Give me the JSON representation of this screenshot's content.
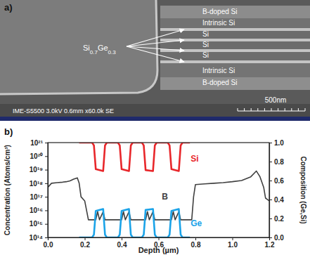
{
  "sem_image": {
    "panel_label": "a)",
    "layer_labels": [
      "B-doped Si",
      "Intrinsic Si",
      "Si",
      "Si",
      "Si",
      "Intrinsic Si",
      "B-doped Si"
    ],
    "sige_label": "Si0.7Ge0.3",
    "info_bar": "IME-S5500 3.0kV 0.6mm x60.0k SE",
    "scale_bar": "500nm"
  },
  "chart_data": {
    "type": "line",
    "panel_label": "b)",
    "x_label": "Depth (µm)",
    "y_label": "Concentration (Atoms/cm³)",
    "y2_label": "Composition (Ge,Si)",
    "log": "y",
    "grid": false,
    "xlim": [
      0,
      1.2
    ],
    "xticks": [
      {
        "value": 0,
        "label": "0.0"
      },
      0.2,
      0.4,
      0.6,
      0.8,
      {
        "value": 1,
        "label": "1.0"
      },
      1.2
    ],
    "ylim": [
      100000000000000.0,
      1e+21
    ],
    "yticks": [
      {
        "value": 100000000000000.0,
        "label": "10¹⁴"
      },
      {
        "value": 1000000000000000.0,
        "label": "10¹⁵"
      },
      {
        "value": 1e+16,
        "label": "10¹⁶"
      },
      {
        "value": 1e+17,
        "label": "10¹⁷"
      },
      {
        "value": 1e+18,
        "label": "10¹⁸"
      },
      {
        "value": 1e+19,
        "label": "10¹⁹"
      },
      {
        "value": 1e+20,
        "label": "10²⁰"
      },
      {
        "value": 1e+21,
        "label": "10²¹"
      }
    ],
    "y2lim": [
      0,
      1
    ],
    "y2ticks": [
      {
        "value": 0,
        "label": "0.0"
      },
      0.2,
      0.4,
      0.6,
      0.8,
      {
        "value": 1,
        "label": "1.0"
      }
    ],
    "series": [
      {
        "name": "Si",
        "color": "#e8262a",
        "axis": "y2",
        "x": [
          0.17,
          0.24,
          0.25,
          0.26,
          0.3,
          0.31,
          0.32,
          0.38,
          0.39,
          0.4,
          0.44,
          0.45,
          0.46,
          0.51,
          0.52,
          0.53,
          0.57,
          0.58,
          0.59,
          0.65,
          0.66,
          0.67,
          0.71,
          0.72,
          0.73,
          0.77
        ],
        "values": [
          1,
          1,
          0.97,
          0.72,
          0.7,
          0.97,
          1,
          1,
          0.97,
          0.72,
          0.7,
          0.97,
          1,
          1,
          0.97,
          0.71,
          0.7,
          0.97,
          1,
          1,
          0.97,
          0.72,
          0.7,
          0.97,
          1,
          1
        ]
      },
      {
        "name": "B",
        "color": "#404040",
        "axis": "y",
        "x": [
          0.0,
          0.02,
          0.05,
          0.08,
          0.1,
          0.12,
          0.14,
          0.16,
          0.17,
          0.18,
          0.2,
          0.22,
          0.26,
          0.27,
          0.28,
          0.3,
          0.31,
          0.4,
          0.41,
          0.42,
          0.44,
          0.45,
          0.53,
          0.54,
          0.55,
          0.57,
          0.58,
          0.67,
          0.68,
          0.69,
          0.71,
          0.72,
          0.78,
          0.79,
          0.8,
          0.85,
          0.9,
          0.95,
          1.0,
          1.05,
          1.1,
          1.13,
          1.15,
          1.17,
          1.18,
          1.2
        ],
        "values": [
          5e+17,
          1e+18,
          1.1e+18,
          1.2e+18,
          1.3e+18,
          1.5e+18,
          2e+18,
          2.5e+18,
          1e+18,
          1e+17,
          5e+16,
          2000000000000000.0,
          2000000000000000.0,
          8000000000000000.0,
          2000000000000000.0,
          8000000000000000.0,
          2000000000000000.0,
          2000000000000000.0,
          8000000000000000.0,
          2000000000000000.0,
          8000000000000000.0,
          2000000000000000.0,
          2000000000000000.0,
          8000000000000000.0,
          2000000000000000.0,
          8000000000000000.0,
          2000000000000000.0,
          2000000000000000.0,
          8000000000000000.0,
          2000000000000000.0,
          8000000000000000.0,
          2000000000000000.0,
          2000000000000000.0,
          1e+17,
          8e+17,
          9e+17,
          1e+18,
          1.1e+18,
          1.3e+18,
          1.6e+18,
          3e+18,
          8e+18,
          3e+18,
          5e+17,
          8e+16,
          5e+16
        ]
      },
      {
        "name": "Ge",
        "color": "#1aa3e8",
        "axis": "y2",
        "x": [
          0.17,
          0.24,
          0.25,
          0.26,
          0.3,
          0.31,
          0.32,
          0.38,
          0.39,
          0.4,
          0.44,
          0.45,
          0.46,
          0.51,
          0.52,
          0.53,
          0.57,
          0.58,
          0.59,
          0.65,
          0.66,
          0.67,
          0.71,
          0.72,
          0.73,
          0.77
        ],
        "values": [
          0,
          0,
          0.03,
          0.28,
          0.3,
          0.03,
          0,
          0,
          0.03,
          0.28,
          0.3,
          0.03,
          0,
          0,
          0.03,
          0.29,
          0.3,
          0.03,
          0,
          0,
          0.03,
          0.28,
          0.3,
          0.03,
          0,
          0
        ]
      }
    ]
  }
}
